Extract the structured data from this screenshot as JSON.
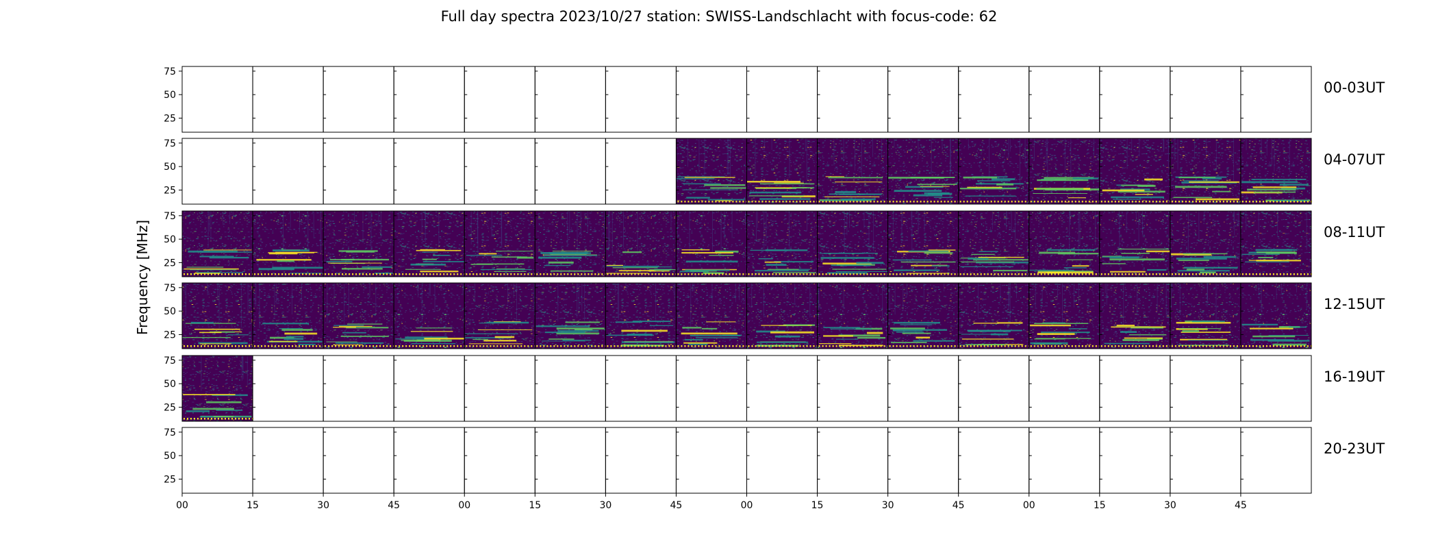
{
  "chart_data": {
    "type": "heatmap",
    "title": "Full day spectra 2023/10/27 station: SWISS-Landschlacht with focus-code: 62",
    "ylabel": "Frequency [MHz]",
    "xlabel": "",
    "y_ticks": [
      "75",
      "50",
      "25"
    ],
    "y_tick_values": [
      75,
      50,
      25
    ],
    "ylim": [
      10,
      80
    ],
    "x_ticks": [
      "00",
      "15",
      "30",
      "45",
      "00",
      "15",
      "30",
      "45",
      "00",
      "15",
      "30",
      "45",
      "00",
      "15",
      "30",
      "45"
    ],
    "panels_per_row": 16,
    "panel_minutes": 15,
    "rows": [
      {
        "label": "00-03UT",
        "has_data": [
          0,
          0,
          0,
          0,
          0,
          0,
          0,
          0,
          0,
          0,
          0,
          0,
          0,
          0,
          0,
          0
        ]
      },
      {
        "label": "04-07UT",
        "has_data": [
          0,
          0,
          0,
          0,
          0,
          0,
          0,
          1,
          1,
          1,
          1,
          1,
          1,
          1,
          1,
          1
        ]
      },
      {
        "label": "08-11UT",
        "has_data": [
          1,
          1,
          1,
          1,
          1,
          1,
          1,
          1,
          1,
          1,
          1,
          1,
          1,
          1,
          1,
          1
        ]
      },
      {
        "label": "12-15UT",
        "has_data": [
          1,
          1,
          1,
          1,
          1,
          1,
          1,
          1,
          1,
          1,
          1,
          1,
          1,
          1,
          1,
          1
        ]
      },
      {
        "label": "16-19UT",
        "has_data": [
          1,
          0,
          0,
          0,
          0,
          0,
          0,
          0,
          0,
          0,
          0,
          0,
          0,
          0,
          0,
          0
        ]
      },
      {
        "label": "20-23UT",
        "has_data": [
          0,
          0,
          0,
          0,
          0,
          0,
          0,
          0,
          0,
          0,
          0,
          0,
          0,
          0,
          0,
          0
        ]
      }
    ],
    "colormap": [
      "#440154",
      "#3b528b",
      "#21918c",
      "#5ec962",
      "#fde725"
    ],
    "grid": false
  }
}
